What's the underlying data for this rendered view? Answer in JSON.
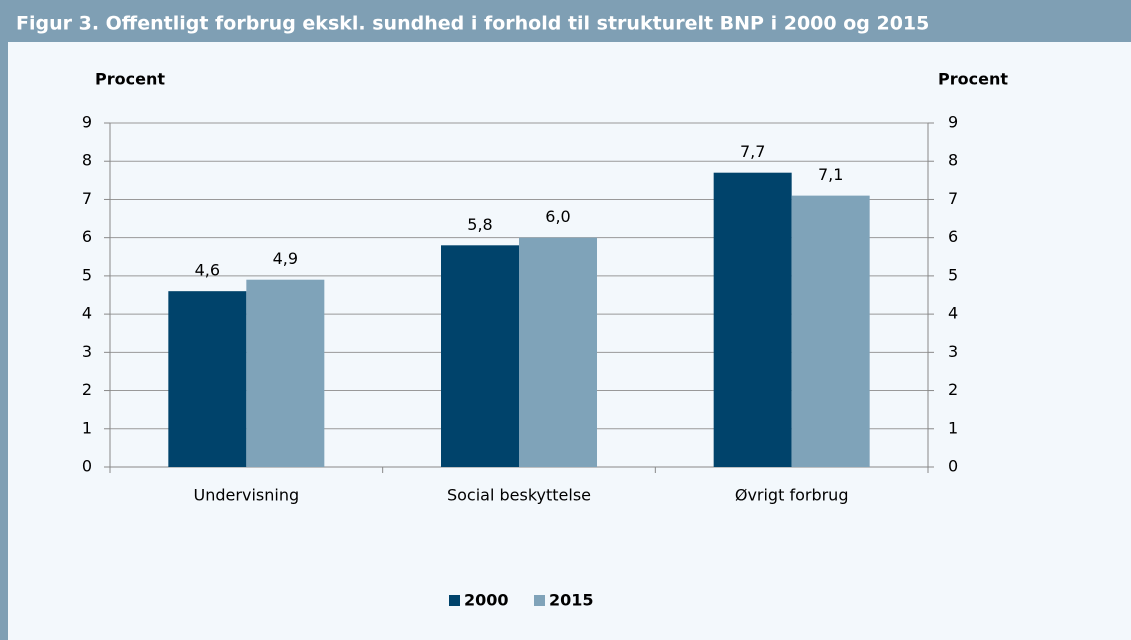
{
  "chart_data": {
    "type": "bar",
    "title": "Figur 3. Offentligt forbrug ekskl. sundhed i forhold til strukturelt BNP i 2000 og 2015",
    "ylabel": "Procent",
    "y2label": "Procent",
    "categories": [
      "Undervisning",
      "Social beskyttelse",
      "Øvrigt forbrug"
    ],
    "series": [
      {
        "name": "2000",
        "color": "#00436b",
        "values": [
          4.6,
          5.8,
          7.7
        ],
        "value_labels": [
          "4,6",
          "5,8",
          "7,7"
        ]
      },
      {
        "name": "2015",
        "color": "#7fa3b9",
        "values": [
          4.9,
          6.0,
          7.1
        ],
        "value_labels": [
          "4,9",
          "6,0",
          "7,1"
        ]
      }
    ],
    "ylim": [
      0,
      9
    ],
    "yticks": [
      0,
      1,
      2,
      3,
      4,
      5,
      6,
      7,
      8,
      9
    ],
    "y2lim": [
      0,
      9
    ],
    "y2ticks": [
      0,
      1,
      2,
      3,
      4,
      5,
      6,
      7,
      8,
      9
    ],
    "grid": true,
    "legend": "bottom"
  }
}
